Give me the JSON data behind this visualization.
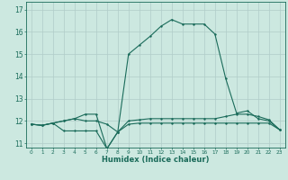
{
  "xlabel": "Humidex (Indice chaleur)",
  "background_color": "#cce8e0",
  "grid_color": "#b0ccc8",
  "line_color": "#1a6b5a",
  "x_values": [
    0,
    1,
    2,
    3,
    4,
    5,
    6,
    7,
    8,
    9,
    10,
    11,
    12,
    13,
    14,
    15,
    16,
    17,
    18,
    19,
    20,
    21,
    22,
    23
  ],
  "line1_y": [
    11.85,
    11.8,
    11.9,
    12.0,
    12.1,
    12.0,
    12.0,
    11.85,
    11.5,
    12.0,
    12.05,
    12.1,
    12.1,
    12.1,
    12.1,
    12.1,
    12.1,
    12.1,
    12.2,
    12.3,
    12.3,
    12.2,
    12.05,
    11.6
  ],
  "line2_y": [
    11.85,
    11.8,
    11.9,
    11.55,
    11.55,
    11.55,
    11.55,
    10.75,
    11.5,
    11.85,
    11.9,
    11.9,
    11.9,
    11.9,
    11.9,
    11.9,
    11.9,
    11.9,
    11.9,
    11.9,
    11.9,
    11.9,
    11.9,
    11.6
  ],
  "line3_y": [
    11.85,
    11.8,
    11.9,
    12.0,
    12.1,
    12.3,
    12.3,
    10.75,
    11.5,
    15.0,
    15.4,
    15.8,
    16.25,
    16.55,
    16.35,
    16.35,
    16.35,
    15.9,
    13.9,
    12.35,
    12.45,
    12.1,
    12.0,
    11.6
  ],
  "ylim_min": 10.8,
  "ylim_max": 17.35,
  "yticks": [
    11,
    12,
    13,
    14,
    15,
    16,
    17
  ],
  "xticks": [
    0,
    1,
    2,
    3,
    4,
    5,
    6,
    7,
    8,
    9,
    10,
    11,
    12,
    13,
    14,
    15,
    16,
    17,
    18,
    19,
    20,
    21,
    22,
    23
  ]
}
